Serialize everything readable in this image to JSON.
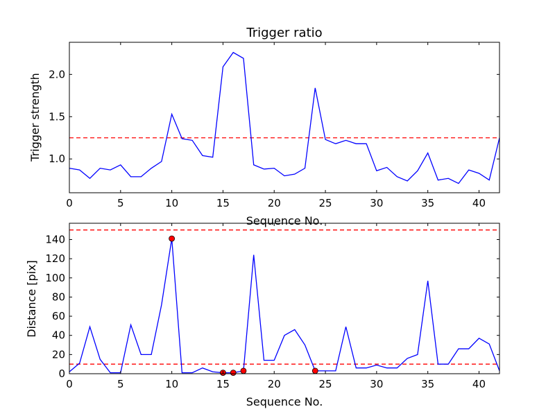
{
  "chart_data": [
    {
      "type": "line",
      "title": "Trigger ratio",
      "xlabel": "Sequence No.",
      "ylabel": "Trigger strength",
      "xlim": [
        0,
        42
      ],
      "ylim": [
        0.6,
        2.38
      ],
      "xticks": [
        0,
        5,
        10,
        15,
        20,
        25,
        30,
        35,
        40
      ],
      "yticks": [
        1.0,
        1.5,
        2.0
      ],
      "ytick_labels": [
        "1.0",
        "1.5",
        "2.0"
      ],
      "grid": false,
      "series": [
        {
          "color": "#0000ff",
          "x": [
            0,
            1,
            2,
            3,
            4,
            5,
            6,
            7,
            8,
            9,
            10,
            11,
            12,
            13,
            14,
            15,
            16,
            17,
            18,
            19,
            20,
            21,
            22,
            23,
            24,
            25,
            26,
            27,
            28,
            29,
            30,
            31,
            32,
            33,
            34,
            35,
            36,
            37,
            38,
            39,
            40,
            41,
            42
          ],
          "values": [
            0.89,
            0.87,
            0.77,
            0.89,
            0.87,
            0.93,
            0.79,
            0.79,
            0.89,
            0.97,
            1.53,
            1.24,
            1.22,
            1.04,
            1.02,
            2.09,
            2.26,
            2.19,
            0.93,
            0.88,
            0.89,
            0.8,
            0.82,
            0.89,
            1.84,
            1.23,
            1.18,
            1.22,
            1.18,
            1.18,
            0.86,
            0.9,
            0.79,
            0.74,
            0.86,
            1.07,
            0.75,
            0.77,
            0.71,
            0.87,
            0.83,
            0.75,
            1.25
          ]
        }
      ],
      "reference_lines": [
        {
          "y": 1.25,
          "color": "#ff0000",
          "style": "dashed"
        }
      ]
    },
    {
      "type": "line",
      "title": "",
      "xlabel": "Sequence No.",
      "ylabel": "Distance [pix]",
      "xlim": [
        0,
        42
      ],
      "ylim": [
        0,
        157
      ],
      "xticks": [
        0,
        5,
        10,
        15,
        20,
        25,
        30,
        35,
        40
      ],
      "yticks": [
        0,
        20,
        40,
        60,
        80,
        100,
        120,
        140
      ],
      "ytick_labels": [
        "0",
        "20",
        "40",
        "60",
        "80",
        "100",
        "120",
        "140"
      ],
      "grid": false,
      "series": [
        {
          "color": "#0000ff",
          "x": [
            0,
            1,
            2,
            3,
            4,
            5,
            6,
            7,
            8,
            9,
            10,
            11,
            12,
            13,
            14,
            15,
            16,
            17,
            18,
            19,
            20,
            21,
            22,
            23,
            24,
            25,
            26,
            27,
            28,
            29,
            30,
            31,
            32,
            33,
            34,
            35,
            36,
            37,
            38,
            39,
            40,
            41,
            42
          ],
          "values": [
            2,
            11,
            49,
            15,
            1,
            1,
            51,
            20,
            20,
            72,
            141,
            1,
            1,
            6,
            2,
            1,
            1,
            3,
            124,
            14,
            14,
            40,
            46,
            30,
            3,
            3,
            3,
            49,
            6,
            6,
            9,
            6,
            6,
            16,
            20,
            97,
            10,
            10,
            26,
            26,
            37,
            31,
            3
          ]
        }
      ],
      "markers": {
        "color": "#ff0000",
        "x": [
          10,
          15,
          16,
          17,
          24
        ],
        "values": [
          141,
          1,
          1,
          3,
          3
        ]
      },
      "reference_lines": [
        {
          "y": 150,
          "color": "#ff0000",
          "style": "dashed"
        },
        {
          "y": 10,
          "color": "#ff0000",
          "style": "dashed"
        }
      ]
    }
  ]
}
